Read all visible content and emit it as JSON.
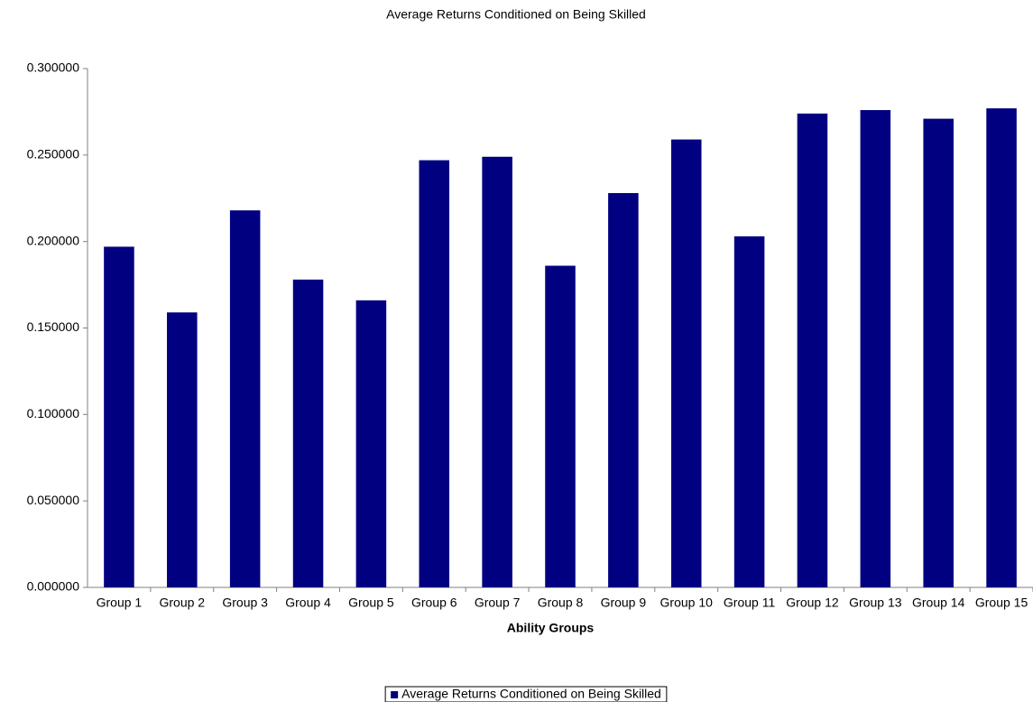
{
  "chart_data": {
    "type": "bar",
    "title": "Average Returns Conditioned on Being Skilled",
    "x_label": "Ability Groups",
    "categories": [
      "Group 1",
      "Group 2",
      "Group 3",
      "Group 4",
      "Group 5",
      "Group 6",
      "Group 7",
      "Group 8",
      "Group 9",
      "Group 10",
      "Group 11",
      "Group 12",
      "Group 13",
      "Group 14",
      "Group 15"
    ],
    "series": [
      {
        "name": "Average Returns Conditioned on Being Skilled",
        "color": "#000080",
        "values": [
          0.197,
          0.159,
          0.218,
          0.178,
          0.166,
          0.247,
          0.249,
          0.186,
          0.228,
          0.259,
          0.203,
          0.274,
          0.276,
          0.271,
          0.277
        ]
      }
    ],
    "ylim": [
      0,
      0.3
    ],
    "yticks": [
      {
        "value": 0,
        "label": "0.000000"
      },
      {
        "value": 0.05,
        "label": "0.050000"
      },
      {
        "value": 0.1,
        "label": "0.100000"
      },
      {
        "value": 0.15,
        "label": "0.150000"
      },
      {
        "value": 0.2,
        "label": "0.200000"
      },
      {
        "value": 0.25,
        "label": "0.250000"
      },
      {
        "value": 0.3,
        "label": "0.300000"
      }
    ],
    "grid": false,
    "legend": "bottom"
  }
}
